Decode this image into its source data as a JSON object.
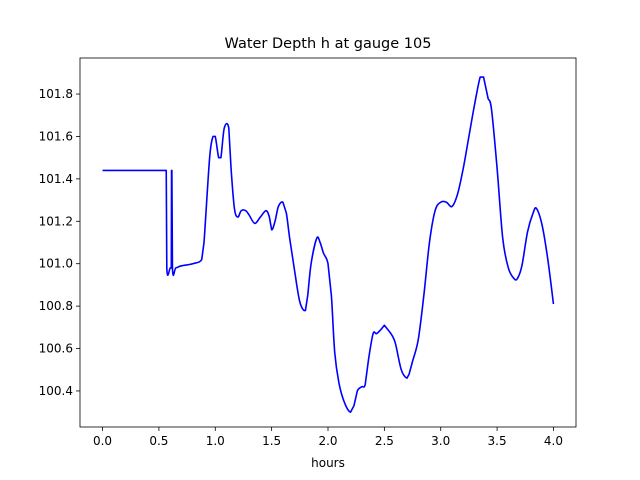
{
  "chart_data": {
    "type": "line",
    "title": "Water Depth h at gauge 105",
    "xlabel": "hours",
    "ylabel": "",
    "xlim": [
      -0.2,
      4.2
    ],
    "ylim": [
      100.23,
      101.97
    ],
    "xticks": [
      0.0,
      0.5,
      1.0,
      1.5,
      2.0,
      2.5,
      3.0,
      3.5,
      4.0
    ],
    "xtick_labels": [
      "0.0",
      "0.5",
      "1.0",
      "1.5",
      "2.0",
      "2.5",
      "3.0",
      "3.5",
      "4.0"
    ],
    "yticks": [
      100.4,
      100.6,
      100.8,
      101.0,
      101.2,
      101.4,
      101.6,
      101.8
    ],
    "ytick_labels": [
      "100.4",
      "100.6",
      "100.8",
      "101.0",
      "101.2",
      "101.4",
      "101.6",
      "101.8"
    ],
    "grid": false,
    "line_color": "#0000ff",
    "series": [
      {
        "name": "",
        "x": [
          0.0,
          0.3,
          0.55,
          0.565,
          0.57,
          0.6,
          0.61,
          0.612,
          0.615,
          0.62,
          0.65,
          0.7,
          0.8,
          0.88,
          0.9,
          0.95,
          0.98,
          1.0,
          1.03,
          1.05,
          1.08,
          1.12,
          1.14,
          1.17,
          1.2,
          1.23,
          1.27,
          1.3,
          1.35,
          1.4,
          1.45,
          1.48,
          1.5,
          1.53,
          1.56,
          1.6,
          1.63,
          1.66,
          1.7,
          1.75,
          1.8,
          1.82,
          1.85,
          1.9,
          1.93,
          1.96,
          2.0,
          2.03,
          2.06,
          2.1,
          2.15,
          2.2,
          2.23,
          2.26,
          2.3,
          2.33,
          2.36,
          2.4,
          2.43,
          2.47,
          2.5,
          2.53,
          2.57,
          2.6,
          2.65,
          2.7,
          2.72,
          2.75,
          2.8,
          2.85,
          2.9,
          2.95,
          3.0,
          3.05,
          3.1,
          3.15,
          3.2,
          3.25,
          3.3,
          3.35,
          3.38,
          3.4,
          3.42,
          3.45,
          3.5,
          3.55,
          3.6,
          3.65,
          3.68,
          3.72,
          3.77,
          3.82,
          3.85,
          3.9,
          3.95,
          4.0
        ],
        "y": [
          101.44,
          101.44,
          101.44,
          101.44,
          100.98,
          100.98,
          100.98,
          101.44,
          101.44,
          100.98,
          100.98,
          100.99,
          101.0,
          101.02,
          101.1,
          101.5,
          101.6,
          101.6,
          101.5,
          101.5,
          101.64,
          101.64,
          101.45,
          101.26,
          101.22,
          101.25,
          101.25,
          101.23,
          101.19,
          101.22,
          101.25,
          101.22,
          101.16,
          101.2,
          101.27,
          101.29,
          101.24,
          101.12,
          100.98,
          100.82,
          100.78,
          100.85,
          101.0,
          101.12,
          101.1,
          101.05,
          101.0,
          100.85,
          100.58,
          100.43,
          100.34,
          100.3,
          100.33,
          100.4,
          100.42,
          100.43,
          100.55,
          100.67,
          100.67,
          100.69,
          100.71,
          100.69,
          100.66,
          100.62,
          100.5,
          100.46,
          100.48,
          100.54,
          100.64,
          100.85,
          101.1,
          101.25,
          101.29,
          101.29,
          101.27,
          101.33,
          101.45,
          101.6,
          101.75,
          101.88,
          101.88,
          101.83,
          101.78,
          101.73,
          101.45,
          101.12,
          100.98,
          100.93,
          100.93,
          100.99,
          101.15,
          101.24,
          101.26,
          101.18,
          101.02,
          100.81
        ]
      }
    ]
  }
}
